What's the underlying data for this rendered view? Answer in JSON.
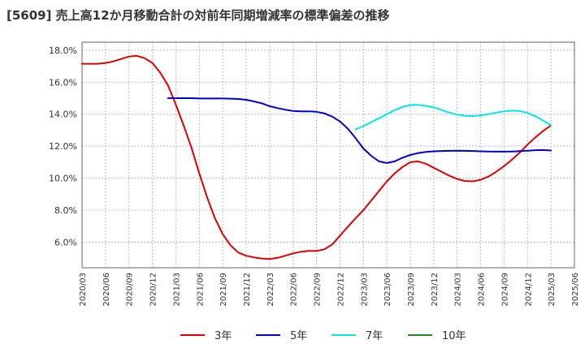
{
  "title": "[5609]  売上高12か月移動合計の対前年同期増減率の標準偏差の推移",
  "chart_data": {
    "type": "line",
    "title": "[5609]  売上高12か月移動合計の対前年同期増減率の標準偏差の推移",
    "xlabel": "",
    "ylabel": "",
    "ylim": [
      4.4,
      18.5
    ],
    "yticks": [
      6.0,
      8.0,
      10.0,
      12.0,
      14.0,
      16.0,
      18.0
    ],
    "ytick_labels": [
      "6.0%",
      "8.0%",
      "10.0%",
      "12.0%",
      "14.0%",
      "16.0%",
      "18.0%"
    ],
    "x_start": "2020/03",
    "xtick_labels": [
      "2020/03",
      "2020/06",
      "2020/09",
      "2020/12",
      "2021/03",
      "2021/06",
      "2021/09",
      "2021/12",
      "2022/03",
      "2022/06",
      "2022/09",
      "2022/12",
      "2023/03",
      "2023/06",
      "2023/09",
      "2023/12",
      "2024/03",
      "2024/06",
      "2024/09",
      "2024/12",
      "2025/03",
      "2025/06"
    ],
    "grid": true,
    "legend_position": "bottom",
    "series": [
      {
        "name": "3年",
        "color": "#dd0000",
        "points": [
          [
            "2020/03",
            17.15
          ],
          [
            "2020/04",
            17.15
          ],
          [
            "2020/05",
            17.15
          ],
          [
            "2020/06",
            17.2
          ],
          [
            "2020/07",
            17.3
          ],
          [
            "2020/08",
            17.45
          ],
          [
            "2020/09",
            17.6
          ],
          [
            "2020/10",
            17.65
          ],
          [
            "2020/11",
            17.5
          ],
          [
            "2020/12",
            17.2
          ],
          [
            "2021/01",
            16.6
          ],
          [
            "2021/02",
            15.8
          ],
          [
            "2021/03",
            14.6
          ],
          [
            "2021/04",
            13.3
          ],
          [
            "2021/05",
            11.9
          ],
          [
            "2021/06",
            10.3
          ],
          [
            "2021/07",
            8.8
          ],
          [
            "2021/08",
            7.5
          ],
          [
            "2021/09",
            6.5
          ],
          [
            "2021/10",
            5.8
          ],
          [
            "2021/11",
            5.35
          ],
          [
            "2021/12",
            5.15
          ],
          [
            "2021/01",
            null
          ],
          [
            "2022/01",
            5.05
          ],
          [
            "2022/02",
            4.98
          ],
          [
            "2022/03",
            4.95
          ],
          [
            "2022/04",
            5.02
          ],
          [
            "2022/05",
            5.15
          ],
          [
            "2022/06",
            5.3
          ],
          [
            "2022/07",
            5.4
          ],
          [
            "2022/08",
            5.45
          ],
          [
            "2022/09",
            5.45
          ],
          [
            "2022/10",
            5.55
          ],
          [
            "2022/11",
            5.85
          ],
          [
            "2022/12",
            6.4
          ],
          [
            "2023/01",
            6.95
          ],
          [
            "2023/02",
            7.5
          ],
          [
            "2023/03",
            8.0
          ],
          [
            "2023/04",
            8.6
          ],
          [
            "2023/05",
            9.2
          ],
          [
            "2023/06",
            9.8
          ],
          [
            "2023/07",
            10.3
          ],
          [
            "2023/08",
            10.7
          ],
          [
            "2023/09",
            11.0
          ],
          [
            "2023/10",
            11.05
          ],
          [
            "2023/11",
            10.9
          ],
          [
            "2023/12",
            10.65
          ],
          [
            "2024/01",
            10.4
          ],
          [
            "2024/02",
            10.15
          ],
          [
            "2024/03",
            9.95
          ],
          [
            "2024/04",
            9.82
          ],
          [
            "2024/05",
            9.8
          ],
          [
            "2024/06",
            9.9
          ],
          [
            "2024/07",
            10.1
          ],
          [
            "2024/08",
            10.4
          ],
          [
            "2024/09",
            10.75
          ],
          [
            "2024/10",
            11.15
          ],
          [
            "2024/11",
            11.6
          ],
          [
            "2024/12",
            12.1
          ],
          [
            "2025/01",
            12.55
          ],
          [
            "2025/02",
            12.95
          ],
          [
            "2025/03",
            13.3
          ]
        ]
      },
      {
        "name": "5年",
        "color": "#0000cc",
        "points": [
          [
            "2021/02",
            15.0
          ],
          [
            "2021/03",
            15.0
          ],
          [
            "2021/04",
            15.0
          ],
          [
            "2021/05",
            15.0
          ],
          [
            "2021/06",
            14.98
          ],
          [
            "2021/07",
            14.98
          ],
          [
            "2021/08",
            14.98
          ],
          [
            "2021/09",
            14.98
          ],
          [
            "2021/10",
            14.97
          ],
          [
            "2021/11",
            14.95
          ],
          [
            "2021/12",
            14.9
          ],
          [
            "2022/01",
            14.8
          ],
          [
            "2022/02",
            14.68
          ],
          [
            "2022/03",
            14.5
          ],
          [
            "2022/04",
            14.38
          ],
          [
            "2022/05",
            14.28
          ],
          [
            "2022/06",
            14.2
          ],
          [
            "2022/07",
            14.18
          ],
          [
            "2022/08",
            14.18
          ],
          [
            "2022/09",
            14.15
          ],
          [
            "2022/10",
            14.05
          ],
          [
            "2022/11",
            13.85
          ],
          [
            "2022/12",
            13.55
          ],
          [
            "2023/01",
            13.1
          ],
          [
            "2023/02",
            12.5
          ],
          [
            "2023/03",
            11.85
          ],
          [
            "2023/04",
            11.4
          ],
          [
            "2023/05",
            11.05
          ],
          [
            "2023/06",
            10.95
          ],
          [
            "2023/07",
            11.05
          ],
          [
            "2023/08",
            11.28
          ],
          [
            "2023/09",
            11.45
          ],
          [
            "2023/10",
            11.57
          ],
          [
            "2023/11",
            11.64
          ],
          [
            "2023/12",
            11.68
          ],
          [
            "2024/01",
            11.7
          ],
          [
            "2024/02",
            11.71
          ],
          [
            "2024/03",
            11.72
          ],
          [
            "2024/04",
            11.71
          ],
          [
            "2024/05",
            11.7
          ],
          [
            "2024/06",
            11.68
          ],
          [
            "2024/07",
            11.67
          ],
          [
            "2024/08",
            11.66
          ],
          [
            "2024/09",
            11.66
          ],
          [
            "2024/10",
            11.67
          ],
          [
            "2024/11",
            11.69
          ],
          [
            "2024/12",
            11.72
          ],
          [
            "2025/01",
            11.75
          ],
          [
            "2025/02",
            11.76
          ],
          [
            "2025/03",
            11.73
          ]
        ]
      },
      {
        "name": "7年",
        "color": "#00e5ee",
        "points": [
          [
            "2023/02",
            13.05
          ],
          [
            "2023/03",
            13.25
          ],
          [
            "2023/04",
            13.5
          ],
          [
            "2023/05",
            13.75
          ],
          [
            "2023/06",
            14.0
          ],
          [
            "2023/07",
            14.25
          ],
          [
            "2023/08",
            14.45
          ],
          [
            "2023/09",
            14.57
          ],
          [
            "2023/10",
            14.58
          ],
          [
            "2023/11",
            14.52
          ],
          [
            "2023/12",
            14.42
          ],
          [
            "2024/01",
            14.27
          ],
          [
            "2024/02",
            14.1
          ],
          [
            "2024/03",
            13.97
          ],
          [
            "2024/04",
            13.9
          ],
          [
            "2024/05",
            13.88
          ],
          [
            "2024/06",
            13.92
          ],
          [
            "2024/07",
            14.0
          ],
          [
            "2024/08",
            14.1
          ],
          [
            "2024/09",
            14.18
          ],
          [
            "2024/10",
            14.22
          ],
          [
            "2024/11",
            14.2
          ],
          [
            "2024/12",
            14.08
          ],
          [
            "2025/01",
            13.87
          ],
          [
            "2025/02",
            13.6
          ],
          [
            "2025/03",
            13.3
          ]
        ]
      },
      {
        "name": "10年",
        "color": "#228b22",
        "points": []
      }
    ]
  }
}
